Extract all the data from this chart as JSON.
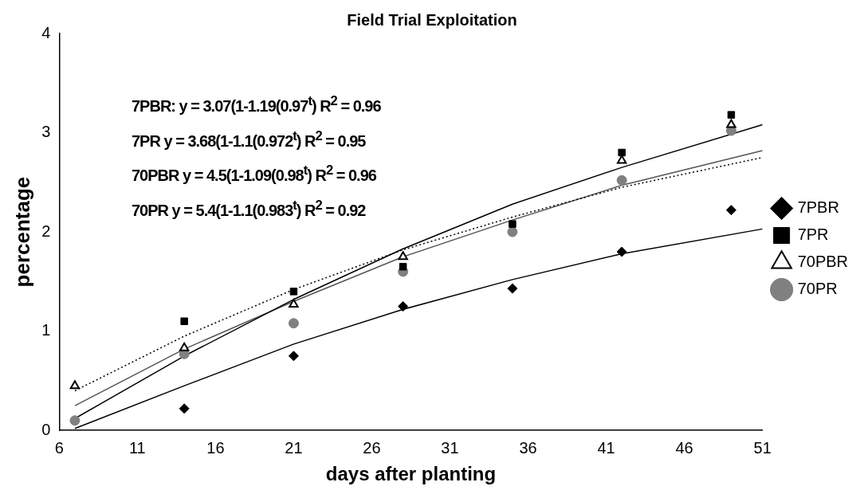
{
  "chart_data": {
    "type": "scatter",
    "title": "Field Trial Exploitation",
    "xlabel": "days after planting",
    "ylabel": "percentage",
    "x": [
      7,
      14,
      21,
      28,
      35,
      42,
      49
    ],
    "series": [
      {
        "name": "7PBR",
        "color": "#000000",
        "marker": "diamond",
        "values": [
          null,
          0.22,
          0.75,
          1.25,
          1.43,
          1.8,
          2.22
        ]
      },
      {
        "name": "7PR",
        "color": "#000000",
        "marker": "square",
        "values": [
          null,
          1.1,
          1.4,
          1.65,
          2.08,
          2.8,
          3.18
        ]
      },
      {
        "name": "70PBR",
        "color": "#000000",
        "marker": "triangle",
        "values": [
          0.45,
          0.83,
          1.27,
          1.75,
          null,
          2.72,
          3.08
        ]
      },
      {
        "name": "70PR",
        "color": "#808080",
        "marker": "circle",
        "values": [
          0.1,
          0.77,
          1.08,
          1.6,
          2.0,
          2.52,
          3.02
        ]
      },
      {
        "type": "line",
        "color": "#000000",
        "marker": "none",
        "line_style": "solid",
        "x": [
          7,
          14,
          21,
          28,
          35,
          42,
          51
        ],
        "values": [
          0.02,
          0.45,
          0.87,
          1.22,
          1.52,
          1.78,
          2.03
        ]
      },
      {
        "type": "line",
        "color": "#000000",
        "marker": "none",
        "line_style": "solid",
        "x": [
          7,
          14,
          21,
          28,
          35,
          42,
          51
        ],
        "values": [
          0.12,
          0.75,
          1.32,
          1.83,
          2.28,
          2.65,
          3.08
        ]
      },
      {
        "type": "line",
        "color": "#000000",
        "marker": "none",
        "line_style": "dotted",
        "x": [
          7,
          14,
          21,
          28,
          35,
          42,
          51
        ],
        "values": [
          0.4,
          0.95,
          1.42,
          1.82,
          2.15,
          2.45,
          2.75
        ]
      },
      {
        "type": "line",
        "color": "#555555",
        "marker": "none",
        "line_style": "solid",
        "x": [
          7,
          14,
          21,
          28,
          35,
          42,
          51
        ],
        "values": [
          0.25,
          0.82,
          1.3,
          1.75,
          2.12,
          2.47,
          2.82
        ]
      }
    ],
    "xlim": [
      6,
      51
    ],
    "xticks": [
      6,
      11,
      16,
      21,
      26,
      31,
      36,
      41,
      46,
      51
    ],
    "ylim": [
      0,
      4
    ],
    "yticks": [
      0,
      1,
      2,
      3,
      4
    ],
    "grid": false,
    "legend": "right",
    "annotations": [
      "7PBR: y = 3.07(1-1.19(0.97$^{t}$) R$^{2}$ = 0.96",
      "7PR y = 3.68(1-1.1(0.972$^{t}$) R$^{2}$ = 0.95",
      "70PBR y = 4.5(1-1.09(0.98$^{t}$) R$^{2}$ = 0.96",
      "70PR y = 5.4(1-1.1(0.983$^{t}$) R$^{2}$ = 0.92"
    ]
  }
}
